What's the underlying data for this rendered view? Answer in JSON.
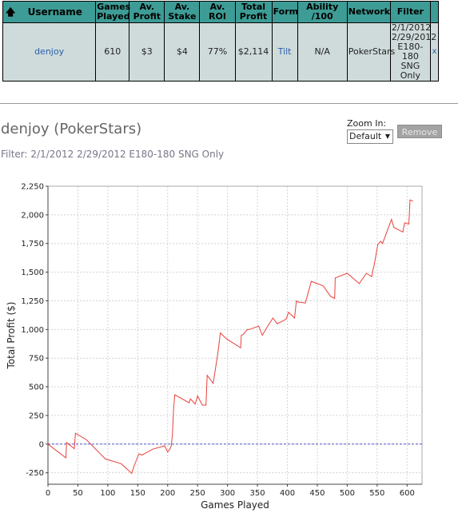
{
  "table": {
    "headers": {
      "username": "Username",
      "games_played": "Games Played",
      "av_profit": "Av. Profit",
      "av_stake": "Av. Stake",
      "av_roi": "Av. ROI",
      "total_profit": "Total Profit",
      "form": "Form",
      "ability": "Ability /100",
      "network": "Network",
      "filter": "Filter"
    },
    "row": {
      "username": "denjoy",
      "games_played": "610",
      "av_profit": "$3",
      "av_stake": "$4",
      "av_roi": "77%",
      "total_profit": "$2,114",
      "form": "Tilt",
      "ability": "N/A",
      "network": "PokerStars",
      "filter_lines": [
        "2/1/2012",
        "2/29/2012",
        "E180-180",
        "SNG Only"
      ],
      "remove": "x"
    }
  },
  "chart_header": {
    "title": "denjoy (PokerStars)",
    "subtitle": "Filter: 2/1/2012 2/29/2012 E180-180 SNG Only",
    "zoom_label": "Zoom In:",
    "zoom_value": "Default",
    "remove_label": "Remove"
  },
  "colors": {
    "header_bg": "#3d9c95",
    "row_bg": "#cfdbdb",
    "line": "#e8413a",
    "zero_line": "#5555cc",
    "grid": "#d4d4d4"
  },
  "chart_data": {
    "type": "line",
    "title": "",
    "xlabel": "Games Played",
    "ylabel": "Total Profit ($)",
    "xlim": [
      0,
      625
    ],
    "ylim": [
      -350,
      2250
    ],
    "xticks": [
      0,
      50,
      100,
      150,
      200,
      250,
      300,
      350,
      400,
      450,
      500,
      550,
      600
    ],
    "yticks": [
      -250,
      0,
      250,
      500,
      750,
      1000,
      1250,
      1500,
      1750,
      2000,
      2250
    ],
    "grid": true,
    "reference_line": 0,
    "series": [
      {
        "x": [
          0,
          30,
          31,
          44,
          46,
          64,
          96,
          122,
          140,
          144,
          152,
          157,
          175,
          195,
          200,
          204,
          206,
          208,
          210,
          212,
          236,
          238,
          246,
          250,
          258,
          264,
          266,
          276,
          284,
          288,
          298,
          322,
          323,
          326,
          333,
          337,
          352,
          358,
          365,
          376,
          383,
          398,
          402,
          412,
          415,
          418,
          430,
          440,
          460,
          472,
          479,
          480,
          500,
          520,
          532,
          541,
          543,
          545,
          551,
          556,
          559,
          574,
          578,
          593,
          596,
          603,
          605,
          610
        ],
        "y": [
          0,
          -120,
          15,
          -40,
          95,
          40,
          -130,
          -170,
          -255,
          -190,
          -85,
          -95,
          -45,
          -15,
          -70,
          -40,
          -15,
          90,
          310,
          430,
          360,
          395,
          350,
          420,
          340,
          340,
          600,
          530,
          800,
          970,
          920,
          840,
          950,
          955,
          1000,
          1000,
          1030,
          950,
          1010,
          1100,
          1050,
          1090,
          1150,
          1100,
          1250,
          1240,
          1230,
          1420,
          1380,
          1290,
          1270,
          1450,
          1490,
          1400,
          1490,
          1460,
          1520,
          1560,
          1740,
          1770,
          1750,
          1960,
          1890,
          1850,
          1930,
          1920,
          2130,
          2120
        ]
      }
    ]
  }
}
